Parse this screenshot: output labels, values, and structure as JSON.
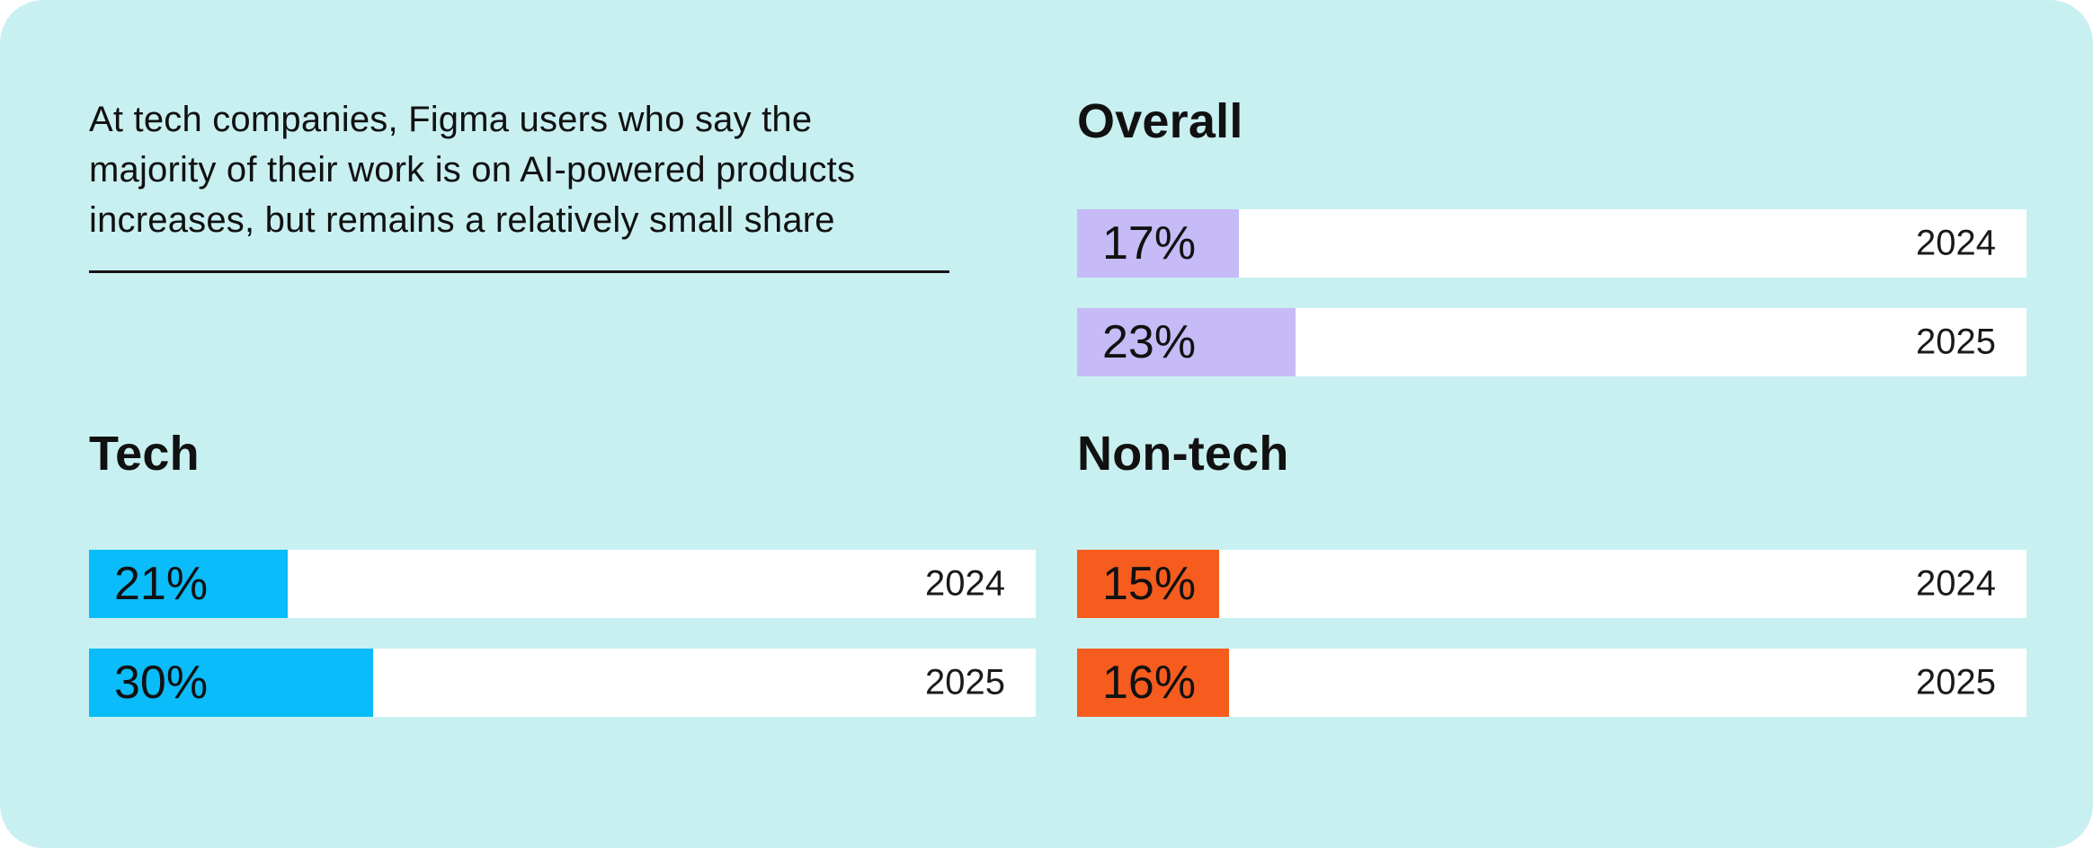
{
  "intro": {
    "lines": [
      "At tech companies, Figma users who say the",
      "majority of their work is on AI-powered products",
      "increases, but remains a relatively small share"
    ]
  },
  "sections": {
    "overall": {
      "heading": "Overall",
      "fill_color": "#C6BAF7",
      "bars": [
        {
          "label": "17%",
          "value": 17,
          "year": "2024"
        },
        {
          "label": "23%",
          "value": 23,
          "year": "2025"
        }
      ]
    },
    "tech": {
      "heading": "Tech",
      "fill_color": "#0ABCF9",
      "bars": [
        {
          "label": "21%",
          "value": 21,
          "year": "2024"
        },
        {
          "label": "30%",
          "value": 30,
          "year": "2025"
        }
      ]
    },
    "nontech": {
      "heading": "Non-tech",
      "fill_color": "#F65C1E",
      "bars": [
        {
          "label": "15%",
          "value": 15,
          "year": "2024"
        },
        {
          "label": "16%",
          "value": 16,
          "year": "2025"
        }
      ]
    }
  },
  "colors": {
    "card_background": "#C9F0F1",
    "bar_track": "#FFFFFF",
    "text": "#111111",
    "overall_fill": "#C6BAF7",
    "tech_fill": "#0ABCF9",
    "nontech_fill": "#F65C1E"
  },
  "chart_data": {
    "type": "bar",
    "orientation": "horizontal",
    "title": "At tech companies, Figma users who say the majority of their work is on AI-powered products increases, but remains a relatively small share",
    "unit": "%",
    "xlim": [
      0,
      100
    ],
    "grid": false,
    "legend": false,
    "categories": [
      "2024",
      "2025"
    ],
    "series": [
      {
        "name": "Overall",
        "values": [
          17,
          23
        ],
        "color": "#C6BAF7"
      },
      {
        "name": "Tech",
        "values": [
          21,
          30
        ],
        "color": "#0ABCF9"
      },
      {
        "name": "Non-tech",
        "values": [
          15,
          16
        ],
        "color": "#F65C1E"
      }
    ],
    "annotations": [
      "17%",
      "23%",
      "21%",
      "30%",
      "15%",
      "16%"
    ]
  }
}
